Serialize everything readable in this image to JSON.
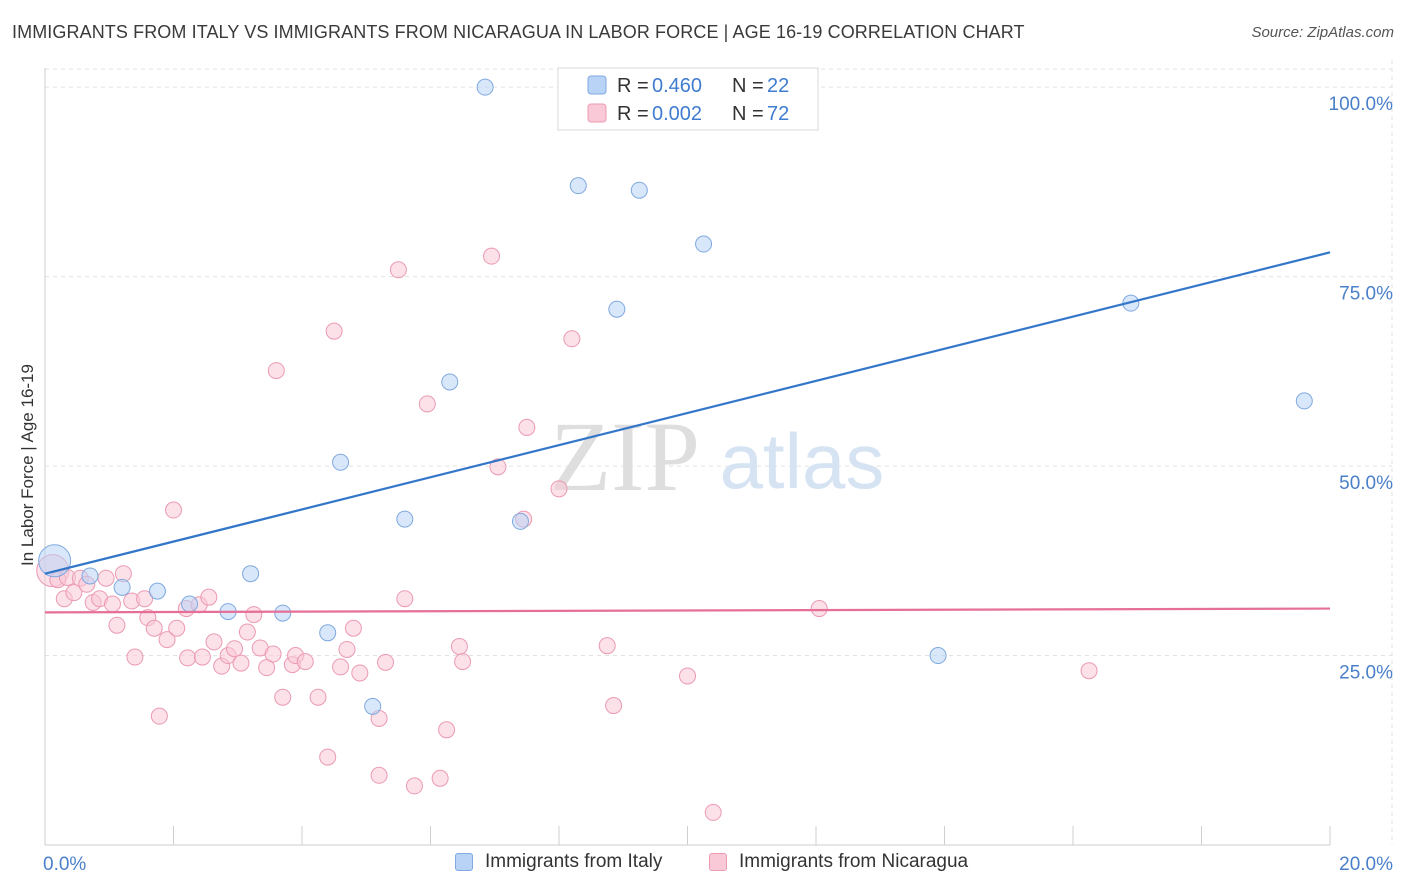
{
  "header": {
    "title": "IMMIGRANTS FROM ITALY VS IMMIGRANTS FROM NICARAGUA IN LABOR FORCE | AGE 16-19 CORRELATION CHART",
    "source": "Source: ZipAtlas.com"
  },
  "watermark": {
    "zip": "ZIP",
    "atlas": "atlas"
  },
  "chart_data": {
    "type": "scatter",
    "title": "IMMIGRANTS FROM ITALY VS IMMIGRANTS FROM NICARAGUA IN LABOR FORCE | AGE 16-19 CORRELATION CHART",
    "xlabel": "",
    "ylabel": "In Labor Force | Age 16-19",
    "xlim": [
      0,
      20
    ],
    "ylim": [
      0,
      102
    ],
    "x_tick_labels": [
      "0.0%",
      "20.0%"
    ],
    "y_ticks": [
      25,
      50,
      75,
      100
    ],
    "y_tick_labels": [
      "25.0%",
      "50.0%",
      "75.0%",
      "100.0%"
    ],
    "grid": true,
    "legend_position": "top-center",
    "colors": {
      "italy_fill": "#b8d3f5",
      "italy_stroke": "#7fa9df",
      "italy_line": "#3276c8",
      "nicaragua_fill": "#f9c9d7",
      "nicaragua_stroke": "#eb9ab2",
      "nicaragua_line": "#e56f96",
      "tick_label": "#4a7fc9"
    },
    "stats": [
      {
        "series": "Immigrants from Italy",
        "r_label": "R =",
        "r": "0.460",
        "n_label": "N =",
        "n": "22"
      },
      {
        "series": "Immigrants from Nicaragua",
        "r_label": "R =",
        "r": "0.002",
        "n_label": "N =",
        "n": "72"
      }
    ],
    "series": [
      {
        "name": "Immigrants from Italy",
        "trend": {
          "x": [
            0,
            20
          ],
          "y": [
            35.8,
            78.2
          ]
        },
        "points": [
          {
            "x": 0.15,
            "y": 37.5,
            "big": true
          },
          {
            "x": 0.7,
            "y": 35.5
          },
          {
            "x": 1.2,
            "y": 34
          },
          {
            "x": 1.75,
            "y": 33.5
          },
          {
            "x": 2.25,
            "y": 31.8
          },
          {
            "x": 2.85,
            "y": 30.8
          },
          {
            "x": 3.2,
            "y": 35.8
          },
          {
            "x": 3.7,
            "y": 30.6
          },
          {
            "x": 4.4,
            "y": 28
          },
          {
            "x": 4.6,
            "y": 50.5
          },
          {
            "x": 5.1,
            "y": 18.3
          },
          {
            "x": 5.6,
            "y": 43
          },
          {
            "x": 6.3,
            "y": 61.1
          },
          {
            "x": 6.85,
            "y": 100
          },
          {
            "x": 7.4,
            "y": 42.7
          },
          {
            "x": 8.3,
            "y": 87
          },
          {
            "x": 8.9,
            "y": 70.7
          },
          {
            "x": 9.25,
            "y": 86.4
          },
          {
            "x": 10.25,
            "y": 79.3
          },
          {
            "x": 13.9,
            "y": 25
          },
          {
            "x": 16.9,
            "y": 71.5
          },
          {
            "x": 19.6,
            "y": 58.6
          }
        ]
      },
      {
        "name": "Immigrants from Nicaragua",
        "trend": {
          "x": [
            0,
            20
          ],
          "y": [
            30.7,
            31.2
          ]
        },
        "points": [
          {
            "x": 0.12,
            "y": 36.2,
            "big": true
          },
          {
            "x": 0.2,
            "y": 35
          },
          {
            "x": 0.3,
            "y": 32.5
          },
          {
            "x": 0.35,
            "y": 35.3
          },
          {
            "x": 0.45,
            "y": 33.3
          },
          {
            "x": 0.55,
            "y": 35.2
          },
          {
            "x": 0.65,
            "y": 34.4
          },
          {
            "x": 0.75,
            "y": 32
          },
          {
            "x": 0.85,
            "y": 32.5
          },
          {
            "x": 0.95,
            "y": 35.2
          },
          {
            "x": 1.05,
            "y": 31.8
          },
          {
            "x": 1.12,
            "y": 29
          },
          {
            "x": 1.22,
            "y": 35.8
          },
          {
            "x": 1.35,
            "y": 32.2
          },
          {
            "x": 1.4,
            "y": 24.8
          },
          {
            "x": 1.55,
            "y": 32.5
          },
          {
            "x": 1.6,
            "y": 30
          },
          {
            "x": 1.7,
            "y": 28.6
          },
          {
            "x": 1.78,
            "y": 17
          },
          {
            "x": 1.9,
            "y": 27.1
          },
          {
            "x": 2.0,
            "y": 44.2
          },
          {
            "x": 2.05,
            "y": 28.6
          },
          {
            "x": 2.2,
            "y": 31.2
          },
          {
            "x": 2.22,
            "y": 24.7
          },
          {
            "x": 2.4,
            "y": 31.7
          },
          {
            "x": 2.45,
            "y": 24.8
          },
          {
            "x": 2.55,
            "y": 32.7
          },
          {
            "x": 2.63,
            "y": 26.8
          },
          {
            "x": 2.75,
            "y": 23.6
          },
          {
            "x": 2.85,
            "y": 25
          },
          {
            "x": 2.95,
            "y": 25.9
          },
          {
            "x": 3.05,
            "y": 24
          },
          {
            "x": 3.15,
            "y": 28.1
          },
          {
            "x": 3.25,
            "y": 30.4
          },
          {
            "x": 3.35,
            "y": 26
          },
          {
            "x": 3.45,
            "y": 23.4
          },
          {
            "x": 3.55,
            "y": 25.2
          },
          {
            "x": 3.7,
            "y": 19.5
          },
          {
            "x": 3.6,
            "y": 62.6
          },
          {
            "x": 3.85,
            "y": 23.8
          },
          {
            "x": 3.9,
            "y": 25
          },
          {
            "x": 4.05,
            "y": 24.2
          },
          {
            "x": 4.25,
            "y": 19.5
          },
          {
            "x": 4.4,
            "y": 11.6
          },
          {
            "x": 4.5,
            "y": 67.8
          },
          {
            "x": 4.6,
            "y": 23.5
          },
          {
            "x": 4.7,
            "y": 25.8
          },
          {
            "x": 4.8,
            "y": 28.6
          },
          {
            "x": 4.9,
            "y": 22.7
          },
          {
            "x": 5.2,
            "y": 16.7
          },
          {
            "x": 5.2,
            "y": 9.2
          },
          {
            "x": 5.3,
            "y": 24.1
          },
          {
            "x": 5.5,
            "y": 75.9
          },
          {
            "x": 5.6,
            "y": 32.5
          },
          {
            "x": 5.75,
            "y": 7.8
          },
          {
            "x": 5.95,
            "y": 58.2
          },
          {
            "x": 6.15,
            "y": 8.8
          },
          {
            "x": 6.25,
            "y": 15.2
          },
          {
            "x": 6.45,
            "y": 26.2
          },
          {
            "x": 6.5,
            "y": 24.2
          },
          {
            "x": 6.95,
            "y": 77.7
          },
          {
            "x": 7.05,
            "y": 49.9
          },
          {
            "x": 7.45,
            "y": 43
          },
          {
            "x": 7.5,
            "y": 55.1
          },
          {
            "x": 8.0,
            "y": 47
          },
          {
            "x": 8.2,
            "y": 66.8
          },
          {
            "x": 8.75,
            "y": 26.3
          },
          {
            "x": 8.85,
            "y": 18.4
          },
          {
            "x": 10.0,
            "y": 22.3
          },
          {
            "x": 10.4,
            "y": 4.3
          },
          {
            "x": 12.05,
            "y": 31.2
          },
          {
            "x": 16.25,
            "y": 23
          }
        ]
      }
    ]
  }
}
